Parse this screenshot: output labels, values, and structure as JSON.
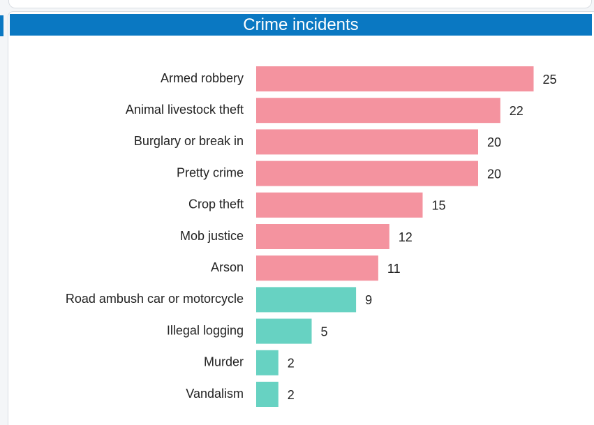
{
  "panel": {
    "title": "Crime incidents"
  },
  "colors": {
    "header_bg": "#0a78c2",
    "bar_pink": "#f4939f",
    "bar_teal": "#67d2c2"
  },
  "chart_data": {
    "type": "bar",
    "orientation": "horizontal",
    "title": "Crime incidents",
    "categories": [
      "Armed robbery",
      "Animal livestock theft",
      "Burglary or break in",
      "Pretty crime",
      "Crop theft",
      "Mob justice",
      "Arson",
      "Road ambush car or motorcycle",
      "Illegal logging",
      "Murder",
      "Vandalism"
    ],
    "values": [
      25,
      22,
      20,
      20,
      15,
      12,
      11,
      9,
      5,
      2,
      2
    ],
    "bar_colors": [
      "#f4939f",
      "#f4939f",
      "#f4939f",
      "#f4939f",
      "#f4939f",
      "#f4939f",
      "#f4939f",
      "#67d2c2",
      "#67d2c2",
      "#67d2c2",
      "#67d2c2"
    ],
    "data_labels": true,
    "grid": false,
    "legend": "none",
    "xlim": [
      0,
      25
    ]
  }
}
